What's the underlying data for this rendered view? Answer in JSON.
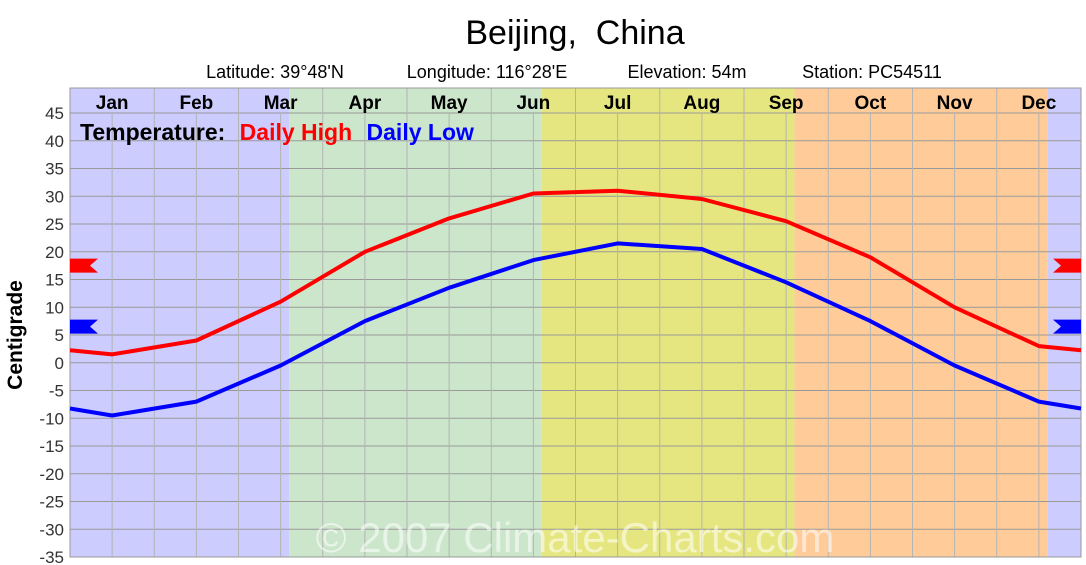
{
  "chart_data": {
    "type": "line",
    "title": "Beijing,  China",
    "subtitle": {
      "latitude": "Latitude: 39°48'N",
      "longitude": "Longitude: 116°28'E",
      "elevation": "Elevation: 54m",
      "station": "Station: PC54511"
    },
    "legend": {
      "prefix": "Temperature:",
      "high": "Daily High",
      "low": "Daily Low",
      "placement": "top-left"
    },
    "ylabel": "Centigrade",
    "xlabel": "",
    "categories": [
      "Jan",
      "Feb",
      "Mar",
      "Apr",
      "May",
      "Jun",
      "Jul",
      "Aug",
      "Sep",
      "Oct",
      "Nov",
      "Dec"
    ],
    "ylim": [
      -35,
      45
    ],
    "yticks": [
      45,
      40,
      35,
      30,
      25,
      20,
      15,
      10,
      5,
      0,
      -5,
      -10,
      -15,
      -20,
      -25,
      -30,
      -35
    ],
    "grid": true,
    "series": [
      {
        "name": "Daily High",
        "color": "#ff0000",
        "values": [
          1.5,
          4.0,
          11.0,
          20.0,
          26.0,
          30.5,
          31.0,
          29.5,
          25.5,
          19.0,
          10.0,
          3.0
        ]
      },
      {
        "name": "Daily Low",
        "color": "#0000ff",
        "values": [
          -9.5,
          -7.0,
          -0.5,
          7.5,
          13.5,
          18.5,
          21.5,
          20.5,
          14.5,
          7.5,
          -0.5,
          -7.0
        ]
      }
    ],
    "annual_mean_markers": {
      "high": 17.5,
      "low": 6.5
    },
    "seasons": [
      {
        "name": "winter",
        "color": "#ccccff"
      },
      {
        "name": "spring",
        "color": "#cce6cc"
      },
      {
        "name": "summer",
        "color": "#e6e680"
      },
      {
        "name": "autumn",
        "color": "#ffcc99"
      }
    ],
    "watermark": "© 2007 Climate-Charts.com"
  }
}
